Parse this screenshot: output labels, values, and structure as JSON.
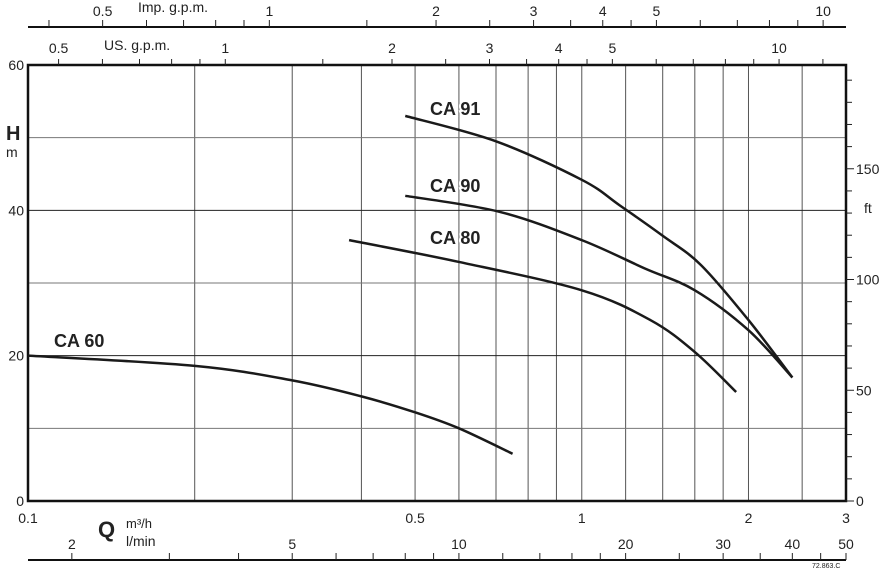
{
  "chart_data": {
    "type": "line",
    "title": "",
    "xlabel": "Q",
    "x_units": {
      "primary": "m³/h",
      "secondary": "l/min",
      "top_us": "US. g.p.m.",
      "top_imp": "Imp. g.p.m."
    },
    "ylabel": "H",
    "y_unit": "m",
    "y2_unit": "ft",
    "x_scale": "log",
    "xlim": [
      0.1,
      3
    ],
    "ylim": [
      0,
      60
    ],
    "x_ticks": [
      {
        "v": 0.1,
        "label": "0.1"
      },
      {
        "v": 0.5,
        "label": "0.5"
      },
      {
        "v": 1,
        "label": "1"
      },
      {
        "v": 2,
        "label": "2"
      },
      {
        "v": 3,
        "label": "3"
      }
    ],
    "y_ticks": [
      {
        "v": 0,
        "label": "0"
      },
      {
        "v": 20,
        "label": "20"
      },
      {
        "v": 40,
        "label": "40"
      },
      {
        "v": 60,
        "label": "60"
      }
    ],
    "y2_ticks": [
      {
        "v": 0,
        "label": "0"
      },
      {
        "v": 50,
        "label": "50"
      },
      {
        "v": 100,
        "label": "100"
      },
      {
        "v": 150,
        "label": "150"
      }
    ],
    "lmin_ticks": [
      {
        "v": 2,
        "label": "2"
      },
      {
        "v": 5,
        "label": "5"
      },
      {
        "v": 10,
        "label": "10"
      },
      {
        "v": 20,
        "label": "20"
      },
      {
        "v": 30,
        "label": "30"
      },
      {
        "v": 40,
        "label": "40"
      },
      {
        "v": 50,
        "label": "50"
      }
    ],
    "us_ticks": [
      {
        "v": 0.5,
        "label": "0.5"
      },
      {
        "v": 1,
        "label": "1"
      },
      {
        "v": 2,
        "label": "2"
      },
      {
        "v": 3,
        "label": "3"
      },
      {
        "v": 4,
        "label": "4"
      },
      {
        "v": 5,
        "label": "5"
      },
      {
        "v": 10,
        "label": "10"
      }
    ],
    "imp_ticks": [
      {
        "v": 0.5,
        "label": "0.5"
      },
      {
        "v": 1,
        "label": "1"
      },
      {
        "v": 2,
        "label": "2"
      },
      {
        "v": 3,
        "label": "3"
      },
      {
        "v": 4,
        "label": "4"
      },
      {
        "v": 5,
        "label": "5"
      },
      {
        "v": 10,
        "label": "10"
      }
    ],
    "grid": true,
    "series": [
      {
        "name": "CA 91",
        "x": [
          0.48,
          0.7,
          1.0,
          1.17,
          1.4,
          1.64,
          2.0,
          2.4
        ],
        "y": [
          53,
          49.5,
          44.2,
          40.7,
          36.5,
          32.5,
          24.9,
          17
        ]
      },
      {
        "name": "CA 90",
        "x": [
          0.48,
          0.71,
          1.0,
          1.3,
          1.6,
          2.0,
          2.4
        ],
        "y": [
          42,
          39.8,
          35.9,
          32,
          29,
          23.5,
          17
        ]
      },
      {
        "name": "CA 80",
        "x": [
          0.38,
          0.6,
          1.0,
          1.33,
          1.6,
          1.9
        ],
        "y": [
          35.9,
          32.9,
          29,
          24.9,
          20.5,
          15
        ]
      },
      {
        "name": "CA 60",
        "x": [
          0.1,
          0.2,
          0.3,
          0.4,
          0.5,
          0.6,
          0.75
        ],
        "y": [
          20,
          18.6,
          16.6,
          14.4,
          12.2,
          10,
          6.5
        ]
      }
    ],
    "code": "72.863.C"
  }
}
